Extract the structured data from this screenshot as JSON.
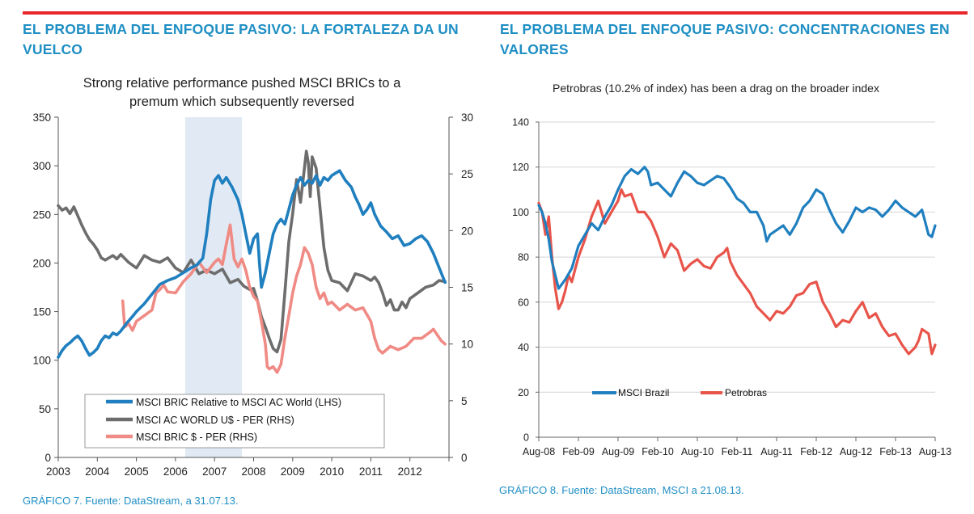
{
  "headings": {
    "left": "EL PROBLEMA DEL ENFOQUE PASIVO: LA FORTALEZA DA UN VUELCO",
    "right": "EL PROBLEMA DEL ENFOQUE PASIVO: CONCENTRACIONES EN VALORES"
  },
  "captions": {
    "left": "GRÁFICO 7. Fuente: DataStream, a 31.07.13.",
    "right": "GRÁFICO 8. Fuente: DataStream, MSCI a 21.08.13."
  },
  "colors": {
    "accent_red": "#e8262c",
    "heading_blue": "#1f8fc4",
    "series_blue": "#1f7fbf",
    "series_gray": "#6d6d6d",
    "series_pink": "#f08a84",
    "series_red": "#e8544a",
    "shade": "#dce6f2"
  },
  "chart_data": [
    {
      "type": "line",
      "title_lines": [
        "Strong relative performance pushed MSCI BRICs to a",
        "premum which subsequently reversed"
      ],
      "x_ticks": [
        "2003",
        "2004",
        "2005",
        "2006",
        "2007",
        "2008",
        "2009",
        "2010",
        "2011",
        "2012"
      ],
      "xlim": [
        2003,
        2013
      ],
      "y_left_ticks": [
        "0",
        "50",
        "100",
        "150",
        "200",
        "250",
        "300",
        "350"
      ],
      "ylim_left": [
        0,
        350
      ],
      "y_right_ticks": [
        "0",
        "5",
        "10",
        "15",
        "20",
        "25",
        "30"
      ],
      "ylim_right": [
        0,
        30
      ],
      "shaded_region": [
        2006.25,
        2007.7
      ],
      "legend": [
        "MSCI BRIC Relative to MSCI AC World (LHS)",
        "MSCI AC WORLD U$ - PER (RHS)",
        "MSCI BRIC $ - PER (RHS)"
      ],
      "series": [
        {
          "name": "MSCI BRIC Relative to MSCI AC World (LHS)",
          "axis": "left",
          "color": "#1f7fbf",
          "x": [
            2003.0,
            2003.1,
            2003.2,
            2003.3,
            2003.4,
            2003.5,
            2003.6,
            2003.7,
            2003.8,
            2003.9,
            2004.0,
            2004.1,
            2004.2,
            2004.3,
            2004.4,
            2004.5,
            2004.6,
            2004.75,
            2004.9,
            2005.0,
            2005.2,
            2005.4,
            2005.6,
            2005.8,
            2006.0,
            2006.2,
            2006.4,
            2006.55,
            2006.7,
            2006.8,
            2006.9,
            2007.0,
            2007.1,
            2007.2,
            2007.3,
            2007.45,
            2007.6,
            2007.7,
            2007.8,
            2007.9,
            2008.0,
            2008.1,
            2008.15,
            2008.2,
            2008.3,
            2008.4,
            2008.5,
            2008.6,
            2008.7,
            2008.8,
            2008.9,
            2009.0,
            2009.1,
            2009.2,
            2009.3,
            2009.4,
            2009.5,
            2009.6,
            2009.7,
            2009.8,
            2009.9,
            2010.0,
            2010.2,
            2010.35,
            2010.5,
            2010.6,
            2010.7,
            2010.8,
            2010.9,
            2011.0,
            2011.1,
            2011.25,
            2011.4,
            2011.55,
            2011.7,
            2011.85,
            2012.0,
            2012.15,
            2012.3,
            2012.45,
            2012.6,
            2012.75,
            2012.9
          ],
          "values": [
            103,
            110,
            115,
            118,
            122,
            125,
            120,
            112,
            105,
            108,
            112,
            120,
            125,
            123,
            128,
            126,
            130,
            138,
            145,
            150,
            158,
            168,
            178,
            182,
            185,
            190,
            195,
            198,
            205,
            230,
            265,
            285,
            290,
            282,
            288,
            278,
            265,
            250,
            230,
            210,
            225,
            230,
            200,
            175,
            190,
            210,
            230,
            240,
            245,
            240,
            255,
            270,
            280,
            288,
            280,
            285,
            282,
            290,
            280,
            288,
            285,
            290,
            295,
            285,
            278,
            268,
            260,
            250,
            255,
            262,
            250,
            238,
            232,
            225,
            228,
            218,
            220,
            225,
            228,
            222,
            210,
            195,
            180
          ]
        },
        {
          "name": "MSCI AC WORLD U$ - PER (RHS)",
          "axis": "right",
          "color": "#6d6d6d",
          "x": [
            2003.0,
            2003.1,
            2003.2,
            2003.3,
            2003.4,
            2003.5,
            2003.6,
            2003.7,
            2003.8,
            2003.9,
            2004.0,
            2004.1,
            2004.2,
            2004.3,
            2004.4,
            2004.5,
            2004.6,
            2004.8,
            2005.0,
            2005.2,
            2005.4,
            2005.6,
            2005.8,
            2006.0,
            2006.2,
            2006.4,
            2006.6,
            2006.8,
            2007.0,
            2007.2,
            2007.4,
            2007.6,
            2007.75,
            2007.9,
            2008.0,
            2008.1,
            2008.2,
            2008.3,
            2008.4,
            2008.5,
            2008.6,
            2008.7,
            2008.8,
            2008.9,
            2009.0,
            2009.1,
            2009.2,
            2009.3,
            2009.35,
            2009.4,
            2009.45,
            2009.5,
            2009.6,
            2009.7,
            2009.8,
            2009.9,
            2010.0,
            2010.2,
            2010.4,
            2010.6,
            2010.8,
            2011.0,
            2011.1,
            2011.2,
            2011.3,
            2011.4,
            2011.5,
            2011.6,
            2011.7,
            2011.8,
            2011.9,
            2012.0,
            2012.2,
            2012.4,
            2012.6,
            2012.75,
            2012.9
          ],
          "values": [
            22.2,
            21.8,
            22.0,
            21.5,
            22.1,
            21.3,
            20.5,
            19.8,
            19.2,
            18.8,
            18.3,
            17.6,
            17.4,
            17.6,
            17.8,
            17.5,
            17.9,
            17.2,
            16.7,
            17.8,
            17.4,
            17.2,
            17.6,
            16.7,
            16.3,
            17.4,
            16.2,
            16.5,
            16.2,
            16.6,
            15.4,
            15.7,
            15.1,
            14.8,
            14.9,
            13.8,
            12.4,
            11.5,
            10.5,
            9.6,
            9.3,
            10.4,
            14.5,
            19.0,
            21.5,
            24.5,
            22.5,
            25.5,
            27.0,
            26.0,
            23.0,
            26.5,
            25.5,
            22.0,
            18.5,
            16.5,
            15.6,
            15.4,
            14.7,
            16.2,
            16.0,
            15.6,
            15.9,
            15.4,
            14.5,
            13.4,
            13.9,
            13.0,
            13.0,
            13.7,
            13.2,
            14.0,
            14.5,
            15.0,
            15.2,
            15.6,
            15.5
          ]
        },
        {
          "name": "MSCI BRIC $ - PER (RHS)",
          "axis": "right",
          "color": "#f08a84",
          "x": [
            2004.65,
            2004.7,
            2004.8,
            2004.9,
            2005.0,
            2005.2,
            2005.4,
            2005.5,
            2005.6,
            2005.7,
            2005.8,
            2006.0,
            2006.2,
            2006.4,
            2006.6,
            2006.8,
            2007.0,
            2007.1,
            2007.2,
            2007.3,
            2007.4,
            2007.5,
            2007.6,
            2007.7,
            2007.8,
            2007.9,
            2008.0,
            2008.1,
            2008.2,
            2008.3,
            2008.35,
            2008.4,
            2008.5,
            2008.6,
            2008.7,
            2008.8,
            2008.9,
            2009.0,
            2009.1,
            2009.2,
            2009.3,
            2009.4,
            2009.5,
            2009.6,
            2009.7,
            2009.8,
            2009.9,
            2010.0,
            2010.2,
            2010.4,
            2010.6,
            2010.8,
            2011.0,
            2011.1,
            2011.2,
            2011.3,
            2011.5,
            2011.7,
            2011.9,
            2012.1,
            2012.3,
            2012.5,
            2012.6,
            2012.7,
            2012.8,
            2012.9
          ],
          "values": [
            13.8,
            11.5,
            11.8,
            11.2,
            12.0,
            12.5,
            13.0,
            14.5,
            14.8,
            15.2,
            14.6,
            14.5,
            15.5,
            16.2,
            17.2,
            16.3,
            17.2,
            17.5,
            17.0,
            18.8,
            20.5,
            17.5,
            16.8,
            17.5,
            16.5,
            15.0,
            14.2,
            13.8,
            12.0,
            10.0,
            8.0,
            7.8,
            8.0,
            7.5,
            8.2,
            10.5,
            12.5,
            14.5,
            16.0,
            17.0,
            18.5,
            18.0,
            17.0,
            15.0,
            14.0,
            14.5,
            13.5,
            13.7,
            13.0,
            13.5,
            13.0,
            13.2,
            12.0,
            10.5,
            9.5,
            9.2,
            9.8,
            9.5,
            9.8,
            10.5,
            10.5,
            11.0,
            11.3,
            10.8,
            10.3,
            10.0
          ]
        }
      ]
    },
    {
      "type": "line",
      "title": "Petrobras (10.2% of index) has been a drag on the broader index",
      "x_ticks": [
        "Aug-08",
        "Feb-09",
        "Aug-09",
        "Feb-10",
        "Aug-10",
        "Feb-11",
        "Aug-11",
        "Feb-12",
        "Aug-12",
        "Feb-13",
        "Aug-13"
      ],
      "xlim": [
        0,
        60
      ],
      "y_ticks": [
        "0",
        "20",
        "40",
        "60",
        "80",
        "100",
        "120",
        "140"
      ],
      "ylim": [
        0,
        140
      ],
      "legend": [
        "MSCI Brazil",
        "Petrobras"
      ],
      "series": [
        {
          "name": "MSCI Brazil",
          "color": "#1f7fbf",
          "x": [
            0,
            0.5,
            1,
            1.5,
            2,
            2.5,
            3,
            3.5,
            4,
            5,
            6,
            7,
            8,
            9,
            10,
            11,
            12,
            13,
            14,
            15,
            16,
            16.5,
            17,
            18,
            19,
            20,
            21,
            22,
            23,
            24,
            25,
            26,
            27,
            28,
            29,
            30,
            31,
            32,
            33,
            34,
            34.5,
            35,
            36,
            37,
            38,
            39,
            40,
            41,
            42,
            43,
            44,
            45,
            46,
            47,
            48,
            49,
            50,
            51,
            52,
            53,
            54,
            55,
            56,
            57,
            58,
            59,
            59.5,
            60
          ],
          "values": [
            103,
            100,
            95,
            88,
            78,
            72,
            66,
            68,
            70,
            75,
            85,
            90,
            95,
            92,
            98,
            103,
            110,
            116,
            119,
            117,
            120,
            118,
            112,
            113,
            110,
            107,
            113,
            118,
            116,
            113,
            112,
            114,
            116,
            115,
            111,
            106,
            104,
            100,
            100,
            94,
            87,
            90,
            92,
            94,
            90,
            95,
            102,
            105,
            110,
            108,
            101,
            95,
            91,
            96,
            102,
            100,
            102,
            101,
            98,
            101,
            105,
            102,
            100,
            98,
            101,
            90,
            89,
            94
          ]
        },
        {
          "name": "Petrobras",
          "color": "#e8544a",
          "x": [
            0,
            0.5,
            1,
            1.5,
            2,
            2.5,
            3,
            3.5,
            4,
            4.5,
            5,
            6,
            7,
            8,
            9,
            10,
            11,
            12,
            12.5,
            13,
            14,
            15,
            16,
            17,
            18,
            19,
            20,
            21,
            22,
            23,
            24,
            25,
            26,
            27,
            28,
            28.5,
            29,
            30,
            31,
            32,
            33,
            34,
            35,
            36,
            37,
            38,
            39,
            40,
            41,
            42,
            43,
            44,
            45,
            46,
            47,
            48,
            49,
            50,
            51,
            52,
            53,
            54,
            55,
            56,
            57,
            57.5,
            58,
            59,
            59.5,
            60
          ],
          "values": [
            104,
            100,
            90,
            98,
            80,
            66,
            57,
            60,
            65,
            72,
            69,
            80,
            88,
            98,
            105,
            95,
            100,
            105,
            110,
            107,
            108,
            100,
            100,
            96,
            89,
            80,
            86,
            83,
            74,
            77,
            79,
            76,
            75,
            80,
            82,
            84,
            78,
            72,
            68,
            64,
            58,
            55,
            52,
            56,
            55,
            58,
            63,
            64,
            68,
            69,
            60,
            55,
            49,
            52,
            51,
            56,
            60,
            53,
            55,
            49,
            45,
            46,
            41,
            37,
            40,
            43,
            48,
            46,
            37,
            41
          ]
        }
      ]
    }
  ]
}
